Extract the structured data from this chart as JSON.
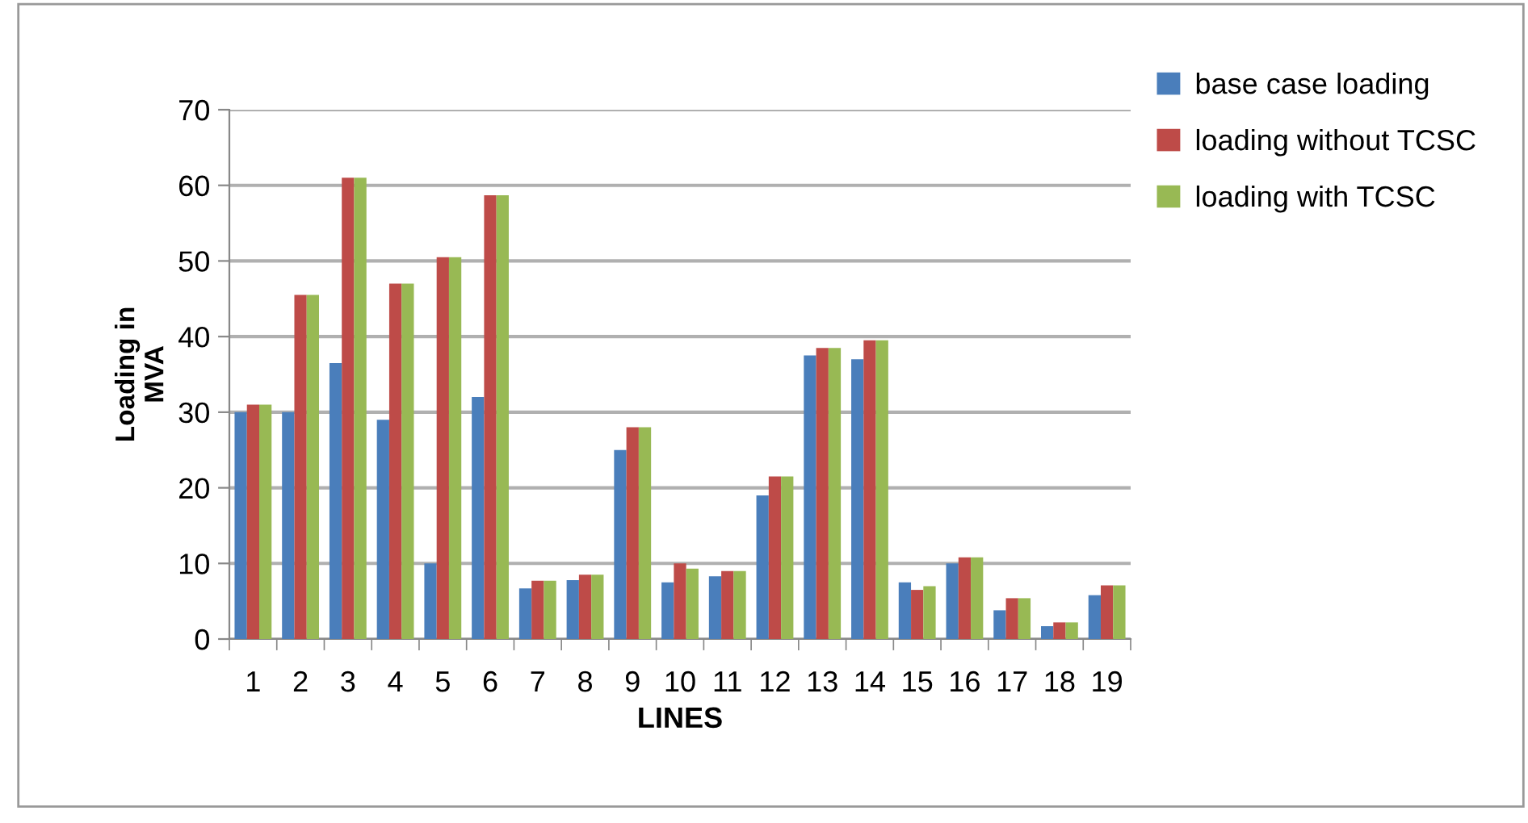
{
  "chart_data": {
    "type": "bar",
    "xlabel": "LINES",
    "ylabel": "Loading in\nMVA",
    "categories": [
      "1",
      "2",
      "3",
      "4",
      "5",
      "6",
      "7",
      "8",
      "9",
      "10",
      "11",
      "12",
      "13",
      "14",
      "15",
      "16",
      "17",
      "18",
      "19"
    ],
    "series": [
      {
        "name": "base case loading",
        "color": "#4a7ebb",
        "values": [
          30,
          30,
          36.5,
          29,
          10,
          32,
          6.7,
          7.8,
          25,
          7.5,
          8.3,
          19,
          37.5,
          37,
          7.5,
          10,
          3.8,
          1.7,
          5.8
        ]
      },
      {
        "name": "loading without TCSC",
        "color": "#be4b48",
        "values": [
          31,
          45.5,
          61,
          47,
          50.5,
          58.7,
          7.7,
          8.5,
          28,
          10,
          9,
          21.5,
          38.5,
          39.5,
          6.5,
          10.8,
          5.4,
          2.2,
          7.1
        ]
      },
      {
        "name": "loading with TCSC",
        "color": "#98b954",
        "values": [
          31,
          45.5,
          61,
          47,
          50.5,
          58.7,
          7.7,
          8.5,
          28,
          9.3,
          9,
          21.5,
          38.5,
          39.5,
          7,
          10.8,
          5.4,
          2.2,
          7.1
        ]
      }
    ],
    "ylim": [
      0,
      70
    ],
    "yticks": [
      0,
      10,
      20,
      30,
      40,
      50,
      60,
      70
    ],
    "grid": "y",
    "legend": "top right"
  }
}
